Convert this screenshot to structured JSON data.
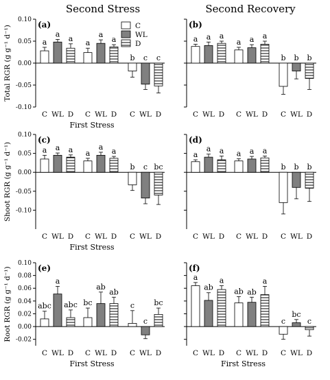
{
  "column_titles": [
    "Second Stress",
    "Second Recovery"
  ],
  "legend": {
    "entries": [
      {
        "label": "C",
        "fill": "#ffffff",
        "pattern": "none"
      },
      {
        "label": "WL",
        "fill": "#808080",
        "pattern": "none"
      },
      {
        "label": "D",
        "fill": "#ffffff",
        "pattern": "horizontal-lines"
      }
    ]
  },
  "colors": {
    "C": "#ffffff",
    "WL": "#808080",
    "D_hatch": "#000000",
    "axis": "#000000"
  },
  "chart_data": [
    {
      "type": "bar",
      "panel": "(a)",
      "ylabel": "Total RGR (g g⁻¹ d⁻¹)",
      "xlabel": "First Stress",
      "groups": [
        "C",
        "WL",
        "D"
      ],
      "categories": [
        "C",
        "WL",
        "D"
      ],
      "ylim": [
        -0.1,
        0.1
      ],
      "yticks": [
        -0.1,
        -0.05,
        0.0,
        0.05,
        0.1
      ],
      "ytick_labels": [
        "-0.10",
        "-0.05",
        "0.00",
        "0.05",
        "0.10"
      ],
      "series": [
        {
          "name": "C",
          "values": [
            0.028,
            0.024,
            -0.018
          ],
          "errors": [
            0.008,
            0.01,
            0.014
          ],
          "letters": [
            "a",
            "a",
            "b"
          ]
        },
        {
          "name": "WL",
          "values": [
            0.048,
            0.045,
            -0.048
          ],
          "errors": [
            0.006,
            0.008,
            0.012
          ],
          "letters": [
            "a",
            "a",
            "c"
          ]
        },
        {
          "name": "D",
          "values": [
            0.034,
            0.037,
            -0.052
          ],
          "errors": [
            0.01,
            0.005,
            0.016
          ],
          "letters": [
            "a",
            "a",
            "c"
          ]
        }
      ]
    },
    {
      "type": "bar",
      "panel": "(b)",
      "ylabel": "",
      "xlabel": "",
      "groups": [
        "C",
        "WL",
        "D"
      ],
      "categories": [
        "C",
        "WL",
        "D"
      ],
      "ylim": [
        -0.1,
        0.1
      ],
      "yticks": [
        -0.1,
        -0.05,
        0.0,
        0.05,
        0.1
      ],
      "ytick_labels": [],
      "series": [
        {
          "name": "C",
          "values": [
            0.038,
            0.03,
            -0.053
          ],
          "errors": [
            0.005,
            0.006,
            0.018
          ],
          "letters": [
            "a",
            "a",
            "b"
          ]
        },
        {
          "name": "WL",
          "values": [
            0.04,
            0.035,
            -0.018
          ],
          "errors": [
            0.008,
            0.007,
            0.018
          ],
          "letters": [
            "a",
            "a",
            "b"
          ]
        },
        {
          "name": "D",
          "values": [
            0.045,
            0.043,
            -0.035
          ],
          "errors": [
            0.005,
            0.007,
            0.025
          ],
          "letters": [
            "a",
            "a",
            "b"
          ]
        }
      ]
    },
    {
      "type": "bar",
      "panel": "(c)",
      "ylabel": "Shoot RGR (g g⁻¹ d⁻¹)",
      "xlabel": "First Stress",
      "groups": [
        "C",
        "WL",
        "D"
      ],
      "categories": [
        "C",
        "WL",
        "D"
      ],
      "ylim": [
        -0.15,
        0.1
      ],
      "yticks": [
        -0.1,
        -0.05,
        0.0,
        0.05,
        0.1
      ],
      "ytick_labels": [
        "-0.10",
        "-0.05",
        "0.00",
        "0.05",
        "0.10"
      ],
      "series": [
        {
          "name": "C",
          "values": [
            0.035,
            0.03,
            -0.033
          ],
          "errors": [
            0.01,
            0.007,
            0.015
          ],
          "letters": [
            "a",
            "a",
            "b"
          ]
        },
        {
          "name": "WL",
          "values": [
            0.045,
            0.045,
            -0.068
          ],
          "errors": [
            0.006,
            0.008,
            0.015
          ],
          "letters": [
            "a",
            "a",
            "c"
          ]
        },
        {
          "name": "D",
          "values": [
            0.04,
            0.037,
            -0.06
          ],
          "errors": [
            0.006,
            0.005,
            0.025
          ],
          "letters": [
            "a",
            "a",
            "bc"
          ]
        }
      ]
    },
    {
      "type": "bar",
      "panel": "(d)",
      "ylabel": "",
      "xlabel": "",
      "groups": [
        "C",
        "WL",
        "D"
      ],
      "categories": [
        "C",
        "WL",
        "D"
      ],
      "ylim": [
        -0.15,
        0.1
      ],
      "yticks": [
        -0.1,
        -0.05,
        0.0,
        0.05,
        0.1
      ],
      "ytick_labels": [],
      "series": [
        {
          "name": "C",
          "values": [
            0.028,
            0.03,
            -0.08
          ],
          "errors": [
            0.005,
            0.006,
            0.03
          ],
          "letters": [
            "a",
            "a",
            "b"
          ]
        },
        {
          "name": "WL",
          "values": [
            0.04,
            0.035,
            -0.04
          ],
          "errors": [
            0.008,
            0.007,
            0.03
          ],
          "letters": [
            "a",
            "a",
            "b"
          ]
        },
        {
          "name": "D",
          "values": [
            0.033,
            0.038,
            -0.042
          ],
          "errors": [
            0.01,
            0.005,
            0.035
          ],
          "letters": [
            "a",
            "a",
            "b"
          ]
        }
      ]
    },
    {
      "type": "bar",
      "panel": "(e)",
      "ylabel": "Root RGR (g g⁻¹ d⁻¹)",
      "xlabel": "First Stress",
      "groups": [
        "C",
        "WL",
        "D"
      ],
      "categories": [
        "C",
        "WL",
        "D"
      ],
      "ylim": [
        -0.03,
        0.1
      ],
      "yticks": [
        -0.02,
        0.0,
        0.02,
        0.04,
        0.06,
        0.08,
        0.1
      ],
      "ytick_labels": [
        "-0.02",
        "0.00",
        "0.02",
        "0.04",
        "0.06",
        "0.08",
        "0.10"
      ],
      "series": [
        {
          "name": "C",
          "values": [
            0.012,
            0.014,
            0.005
          ],
          "errors": [
            0.012,
            0.015,
            0.02
          ],
          "letters": [
            "abc",
            "bc",
            "c"
          ]
        },
        {
          "name": "WL",
          "values": [
            0.051,
            0.036,
            -0.013
          ],
          "errors": [
            0.012,
            0.018,
            0.006
          ],
          "letters": [
            "a",
            "ab",
            "c"
          ]
        },
        {
          "name": "D",
          "values": [
            0.014,
            0.036,
            0.019
          ],
          "errors": [
            0.012,
            0.01,
            0.01
          ],
          "letters": [
            "abc",
            "ab",
            "bc"
          ]
        }
      ]
    },
    {
      "type": "bar",
      "panel": "(f)",
      "ylabel": "",
      "xlabel": "First Stress",
      "groups": [
        "C",
        "WL",
        "D"
      ],
      "categories": [
        "C",
        "WL",
        "D"
      ],
      "ylim": [
        -0.03,
        0.1
      ],
      "yticks": [
        -0.02,
        0.0,
        0.02,
        0.04,
        0.06,
        0.08,
        0.1
      ],
      "ytick_labels": [],
      "series": [
        {
          "name": "C",
          "values": [
            0.064,
            0.037,
            -0.012
          ],
          "errors": [
            0.005,
            0.01,
            0.008
          ],
          "letters": [
            "a",
            "ab",
            "c"
          ]
        },
        {
          "name": "WL",
          "values": [
            0.041,
            0.038,
            0.006
          ],
          "errors": [
            0.012,
            0.008,
            0.005
          ],
          "letters": [
            "ab",
            "ab",
            "bc"
          ]
        },
        {
          "name": "D",
          "values": [
            0.058,
            0.05,
            -0.005
          ],
          "errors": [
            0.006,
            0.013,
            0.01
          ],
          "letters": [
            "a",
            "a",
            "c"
          ]
        }
      ]
    }
  ]
}
